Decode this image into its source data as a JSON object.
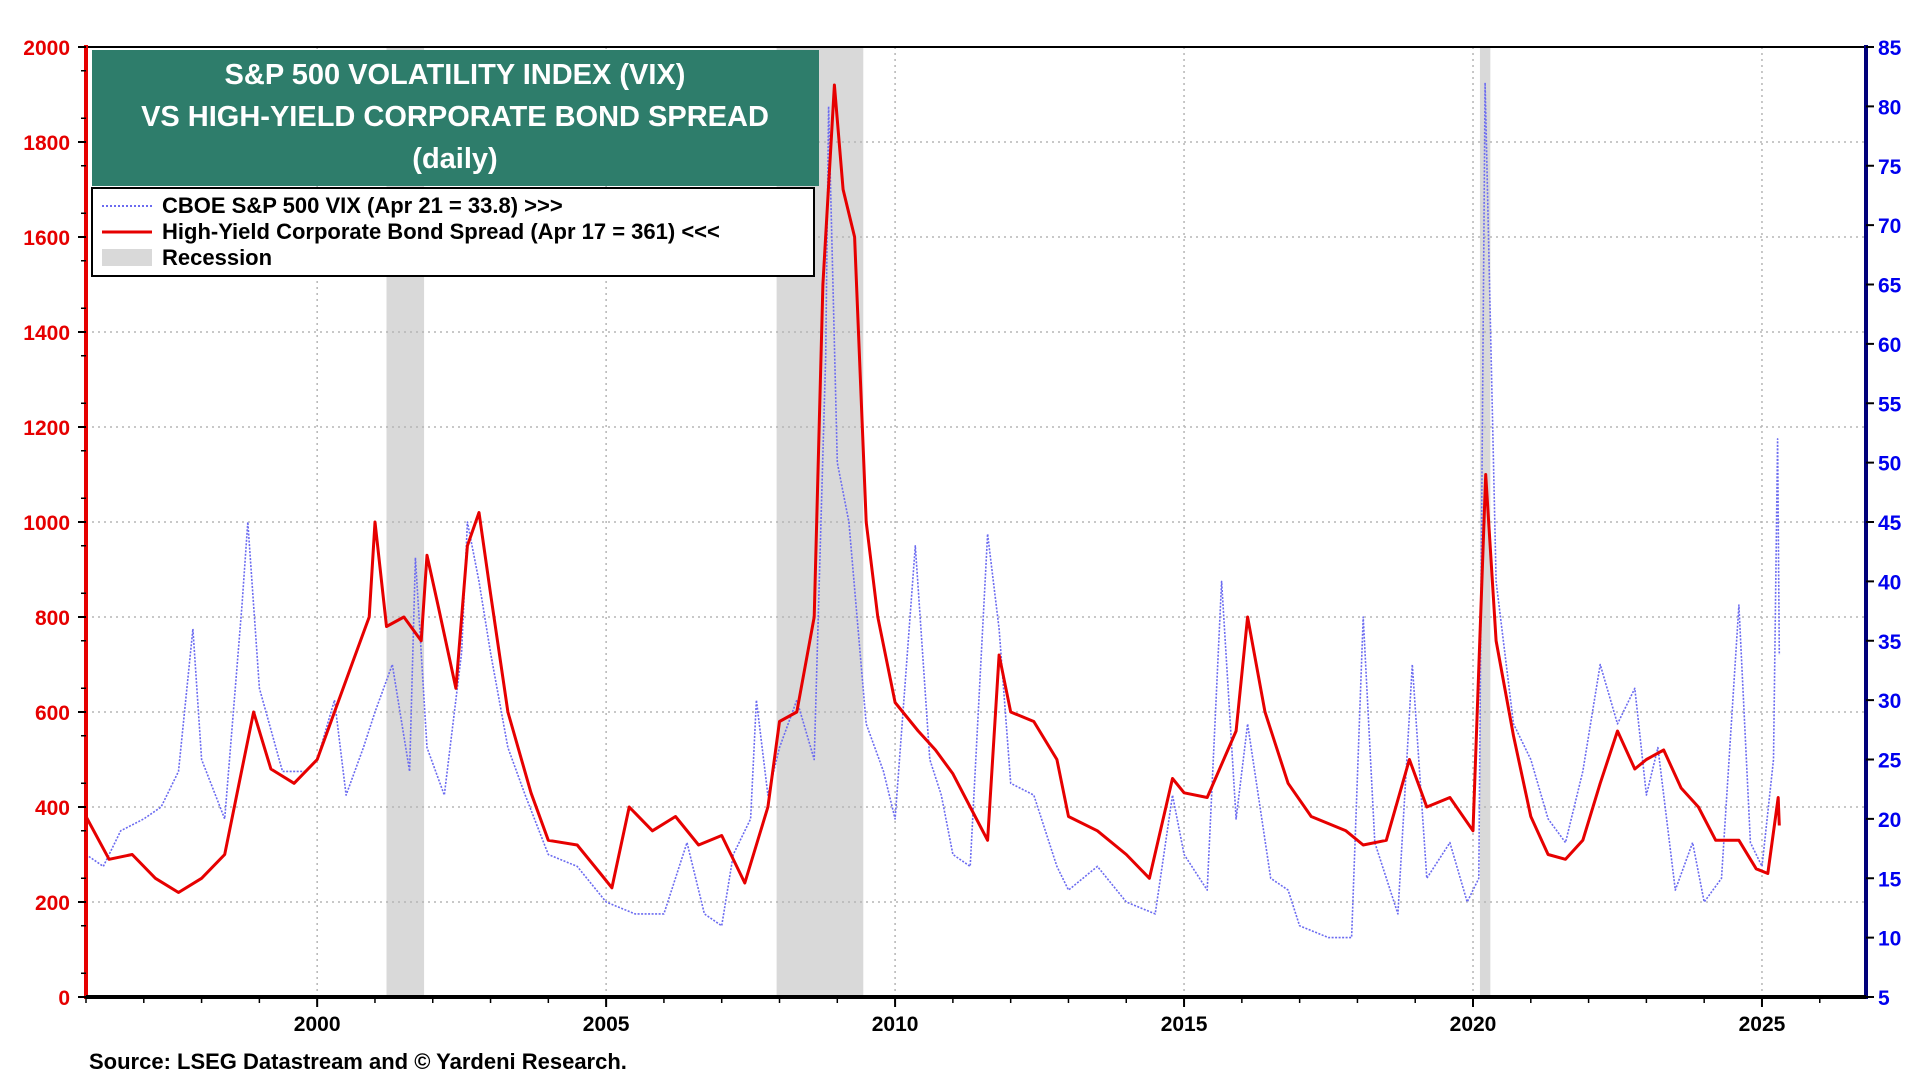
{
  "chart_data": {
    "type": "line",
    "title_lines": [
      "S&P 500 VOLATILITY INDEX (VIX)",
      "VS HIGH-YIELD CORPORATE BOND SPREAD",
      "(daily)"
    ],
    "source": "Source: LSEG Datastream and © Yardeni Research.",
    "x_ticks": [
      "2000",
      "2005",
      "2010",
      "2015",
      "2020",
      "2025"
    ],
    "x_range": [
      1996.0,
      2026.8
    ],
    "left_axis": {
      "range": [
        0,
        2000
      ],
      "ticks": [
        "0",
        "200",
        "400",
        "600",
        "800",
        "1000",
        "1200",
        "1400",
        "1600",
        "1800",
        "2000"
      ],
      "color": "#e60000"
    },
    "right_axis": {
      "range": [
        5,
        85
      ],
      "ticks": [
        "5",
        "10",
        "15",
        "20",
        "25",
        "30",
        "35",
        "40",
        "45",
        "50",
        "55",
        "60",
        "65",
        "70",
        "75",
        "80",
        "85"
      ],
      "color": "#0000ee"
    },
    "grid": true,
    "legend_position": "top-left",
    "legend": [
      {
        "label": "CBOE S&P 500 VIX (Apr 21 = 33.8) >>>",
        "style": "dotted",
        "color": "#6b6bf0"
      },
      {
        "label": "High-Yield Corporate Bond Spread (Apr 17 = 361) <<<",
        "style": "solid",
        "color": "#e60000"
      },
      {
        "label": "Recession",
        "style": "box",
        "color": "#d9d9d9"
      }
    ],
    "recessions": [
      [
        2001.2,
        2001.85
      ],
      [
        2007.95,
        2009.45
      ],
      [
        2020.12,
        2020.3
      ]
    ],
    "series": [
      {
        "name": "CBOE S&P 500 VIX",
        "axis": "right",
        "color": "#6b6bf0",
        "points": [
          [
            1996.0,
            17
          ],
          [
            1996.3,
            16
          ],
          [
            1996.6,
            19
          ],
          [
            1997.0,
            20
          ],
          [
            1997.3,
            21
          ],
          [
            1997.6,
            24
          ],
          [
            1997.85,
            36
          ],
          [
            1998.0,
            25
          ],
          [
            1998.4,
            20
          ],
          [
            1998.7,
            38
          ],
          [
            1998.8,
            45
          ],
          [
            1999.0,
            31
          ],
          [
            1999.4,
            24
          ],
          [
            1999.8,
            24
          ],
          [
            2000.0,
            25
          ],
          [
            2000.3,
            30
          ],
          [
            2000.5,
            22
          ],
          [
            2000.8,
            26
          ],
          [
            2001.0,
            29
          ],
          [
            2001.3,
            33
          ],
          [
            2001.6,
            24
          ],
          [
            2001.7,
            42
          ],
          [
            2001.9,
            26
          ],
          [
            2002.2,
            22
          ],
          [
            2002.5,
            34
          ],
          [
            2002.6,
            45
          ],
          [
            2002.8,
            40
          ],
          [
            2003.0,
            34
          ],
          [
            2003.3,
            26
          ],
          [
            2003.6,
            22
          ],
          [
            2004.0,
            17
          ],
          [
            2004.5,
            16
          ],
          [
            2005.0,
            13
          ],
          [
            2005.5,
            12
          ],
          [
            2006.0,
            12
          ],
          [
            2006.4,
            18
          ],
          [
            2006.7,
            12
          ],
          [
            2007.0,
            11
          ],
          [
            2007.2,
            17
          ],
          [
            2007.5,
            20
          ],
          [
            2007.6,
            30
          ],
          [
            2007.8,
            22
          ],
          [
            2008.0,
            26
          ],
          [
            2008.3,
            30
          ],
          [
            2008.6,
            25
          ],
          [
            2008.8,
            59
          ],
          [
            2008.85,
            80
          ],
          [
            2009.0,
            50
          ],
          [
            2009.2,
            45
          ],
          [
            2009.5,
            28
          ],
          [
            2009.8,
            24
          ],
          [
            2010.0,
            20
          ],
          [
            2010.35,
            43
          ],
          [
            2010.6,
            25
          ],
          [
            2010.8,
            22
          ],
          [
            2011.0,
            17
          ],
          [
            2011.3,
            16
          ],
          [
            2011.6,
            44
          ],
          [
            2011.8,
            36
          ],
          [
            2012.0,
            23
          ],
          [
            2012.4,
            22
          ],
          [
            2012.8,
            16
          ],
          [
            2013.0,
            14
          ],
          [
            2013.5,
            16
          ],
          [
            2014.0,
            13
          ],
          [
            2014.5,
            12
          ],
          [
            2014.8,
            22
          ],
          [
            2015.0,
            17
          ],
          [
            2015.4,
            14
          ],
          [
            2015.65,
            40
          ],
          [
            2015.9,
            20
          ],
          [
            2016.1,
            28
          ],
          [
            2016.5,
            15
          ],
          [
            2016.8,
            14
          ],
          [
            2017.0,
            11
          ],
          [
            2017.5,
            10
          ],
          [
            2017.9,
            10
          ],
          [
            2018.1,
            37
          ],
          [
            2018.3,
            18
          ],
          [
            2018.7,
            12
          ],
          [
            2018.95,
            33
          ],
          [
            2019.2,
            15
          ],
          [
            2019.6,
            18
          ],
          [
            2019.9,
            13
          ],
          [
            2020.1,
            15
          ],
          [
            2020.21,
            82
          ],
          [
            2020.4,
            40
          ],
          [
            2020.7,
            28
          ],
          [
            2021.0,
            25
          ],
          [
            2021.3,
            20
          ],
          [
            2021.6,
            18
          ],
          [
            2021.9,
            24
          ],
          [
            2022.2,
            33
          ],
          [
            2022.5,
            28
          ],
          [
            2022.8,
            31
          ],
          [
            2023.0,
            22
          ],
          [
            2023.2,
            26
          ],
          [
            2023.5,
            14
          ],
          [
            2023.8,
            18
          ],
          [
            2024.0,
            13
          ],
          [
            2024.3,
            15
          ],
          [
            2024.6,
            38
          ],
          [
            2024.8,
            18
          ],
          [
            2025.0,
            16
          ],
          [
            2025.2,
            25
          ],
          [
            2025.27,
            52
          ],
          [
            2025.3,
            33.8
          ]
        ]
      },
      {
        "name": "High-Yield Corporate Bond Spread",
        "axis": "left",
        "color": "#e60000",
        "points": [
          [
            1996.0,
            380
          ],
          [
            1996.4,
            290
          ],
          [
            1996.8,
            300
          ],
          [
            1997.2,
            250
          ],
          [
            1997.6,
            220
          ],
          [
            1998.0,
            250
          ],
          [
            1998.4,
            300
          ],
          [
            1998.65,
            450
          ],
          [
            1998.9,
            600
          ],
          [
            1999.2,
            480
          ],
          [
            1999.6,
            450
          ],
          [
            2000.0,
            500
          ],
          [
            2000.3,
            600
          ],
          [
            2000.6,
            700
          ],
          [
            2000.9,
            800
          ],
          [
            2001.0,
            1000
          ],
          [
            2001.2,
            780
          ],
          [
            2001.5,
            800
          ],
          [
            2001.8,
            750
          ],
          [
            2001.9,
            930
          ],
          [
            2002.1,
            820
          ],
          [
            2002.4,
            650
          ],
          [
            2002.6,
            950
          ],
          [
            2002.8,
            1020
          ],
          [
            2003.0,
            850
          ],
          [
            2003.3,
            600
          ],
          [
            2003.7,
            430
          ],
          [
            2004.0,
            330
          ],
          [
            2004.5,
            320
          ],
          [
            2004.9,
            260
          ],
          [
            2005.1,
            230
          ],
          [
            2005.4,
            400
          ],
          [
            2005.8,
            350
          ],
          [
            2006.2,
            380
          ],
          [
            2006.6,
            320
          ],
          [
            2007.0,
            340
          ],
          [
            2007.4,
            240
          ],
          [
            2007.8,
            400
          ],
          [
            2008.0,
            580
          ],
          [
            2008.3,
            600
          ],
          [
            2008.6,
            800
          ],
          [
            2008.75,
            1500
          ],
          [
            2008.95,
            1920
          ],
          [
            2009.1,
            1700
          ],
          [
            2009.3,
            1600
          ],
          [
            2009.5,
            1000
          ],
          [
            2009.7,
            800
          ],
          [
            2010.0,
            620
          ],
          [
            2010.4,
            560
          ],
          [
            2010.7,
            520
          ],
          [
            2011.0,
            470
          ],
          [
            2011.3,
            400
          ],
          [
            2011.6,
            330
          ],
          [
            2011.8,
            720
          ],
          [
            2012.0,
            600
          ],
          [
            2012.4,
            580
          ],
          [
            2012.8,
            500
          ],
          [
            2013.0,
            380
          ],
          [
            2013.5,
            350
          ],
          [
            2014.0,
            300
          ],
          [
            2014.4,
            250
          ],
          [
            2014.8,
            460
          ],
          [
            2015.0,
            430
          ],
          [
            2015.4,
            420
          ],
          [
            2015.9,
            560
          ],
          [
            2016.1,
            800
          ],
          [
            2016.4,
            600
          ],
          [
            2016.8,
            450
          ],
          [
            2017.2,
            380
          ],
          [
            2017.8,
            350
          ],
          [
            2018.1,
            320
          ],
          [
            2018.5,
            330
          ],
          [
            2018.9,
            500
          ],
          [
            2019.2,
            400
          ],
          [
            2019.6,
            420
          ],
          [
            2020.0,
            350
          ],
          [
            2020.22,
            1100
          ],
          [
            2020.4,
            750
          ],
          [
            2020.7,
            550
          ],
          [
            2021.0,
            380
          ],
          [
            2021.3,
            300
          ],
          [
            2021.6,
            290
          ],
          [
            2021.9,
            330
          ],
          [
            2022.2,
            450
          ],
          [
            2022.5,
            560
          ],
          [
            2022.8,
            480
          ],
          [
            2023.0,
            500
          ],
          [
            2023.3,
            520
          ],
          [
            2023.6,
            440
          ],
          [
            2023.9,
            400
          ],
          [
            2024.2,
            330
          ],
          [
            2024.6,
            330
          ],
          [
            2024.9,
            270
          ],
          [
            2025.1,
            260
          ],
          [
            2025.28,
            420
          ],
          [
            2025.3,
            361
          ]
        ]
      }
    ]
  }
}
